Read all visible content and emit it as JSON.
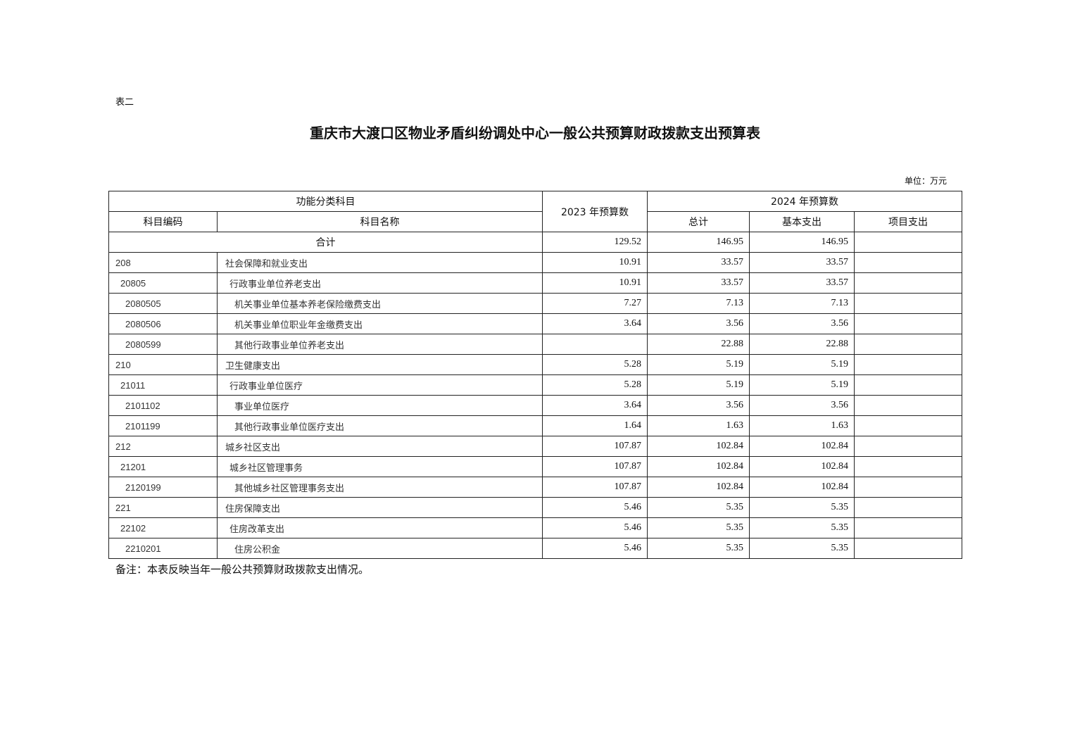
{
  "doc": {
    "tag": "表二",
    "title": "重庆市大渡口区物业矛盾纠纷调处中心一般公共预算财政拨款支出预算表",
    "unit": "单位：万元",
    "note": "备注：本表反映当年一般公共预算财政拨款支出情况。"
  },
  "table": {
    "headers": {
      "functional": "功能分类科目",
      "budget2023": "2023 年预算数",
      "budget2024": "2024 年预算数",
      "code": "科目编码",
      "name": "科目名称",
      "total": "总计",
      "basic": "基本支出",
      "project": "项目支出"
    },
    "total_row": {
      "label": "合计",
      "b2023": "129.52",
      "total": "146.95",
      "basic": "146.95",
      "project": ""
    },
    "rows": [
      {
        "level": 1,
        "code": "208",
        "name": "社会保障和就业支出",
        "b2023": "10.91",
        "total": "33.57",
        "basic": "33.57",
        "project": ""
      },
      {
        "level": 2,
        "code": "20805",
        "name": "行政事业单位养老支出",
        "b2023": "10.91",
        "total": "33.57",
        "basic": "33.57",
        "project": ""
      },
      {
        "level": 3,
        "code": "2080505",
        "name": "机关事业单位基本养老保险缴费支出",
        "b2023": "7.27",
        "total": "7.13",
        "basic": "7.13",
        "project": ""
      },
      {
        "level": 3,
        "code": "2080506",
        "name": "机关事业单位职业年金缴费支出",
        "b2023": "3.64",
        "total": "3.56",
        "basic": "3.56",
        "project": ""
      },
      {
        "level": 3,
        "code": "2080599",
        "name": "其他行政事业单位养老支出",
        "b2023": "",
        "total": "22.88",
        "basic": "22.88",
        "project": ""
      },
      {
        "level": 1,
        "code": "210",
        "name": "卫生健康支出",
        "b2023": "5.28",
        "total": "5.19",
        "basic": "5.19",
        "project": ""
      },
      {
        "level": 2,
        "code": "21011",
        "name": "行政事业单位医疗",
        "b2023": "5.28",
        "total": "5.19",
        "basic": "5.19",
        "project": ""
      },
      {
        "level": 3,
        "code": "2101102",
        "name": "事业单位医疗",
        "b2023": "3.64",
        "total": "3.56",
        "basic": "3.56",
        "project": ""
      },
      {
        "level": 3,
        "code": "2101199",
        "name": "其他行政事业单位医疗支出",
        "b2023": "1.64",
        "total": "1.63",
        "basic": "1.63",
        "project": ""
      },
      {
        "level": 1,
        "code": "212",
        "name": "城乡社区支出",
        "b2023": "107.87",
        "total": "102.84",
        "basic": "102.84",
        "project": ""
      },
      {
        "level": 2,
        "code": "21201",
        "name": "城乡社区管理事务",
        "b2023": "107.87",
        "total": "102.84",
        "basic": "102.84",
        "project": ""
      },
      {
        "level": 3,
        "code": "2120199",
        "name": "其他城乡社区管理事务支出",
        "b2023": "107.87",
        "total": "102.84",
        "basic": "102.84",
        "project": ""
      },
      {
        "level": 1,
        "code": "221",
        "name": "住房保障支出",
        "b2023": "5.46",
        "total": "5.35",
        "basic": "5.35",
        "project": ""
      },
      {
        "level": 2,
        "code": "22102",
        "name": "住房改革支出",
        "b2023": "5.46",
        "total": "5.35",
        "basic": "5.35",
        "project": ""
      },
      {
        "level": 3,
        "code": "2210201",
        "name": "住房公积金",
        "b2023": "5.46",
        "total": "5.35",
        "basic": "5.35",
        "project": ""
      }
    ]
  }
}
